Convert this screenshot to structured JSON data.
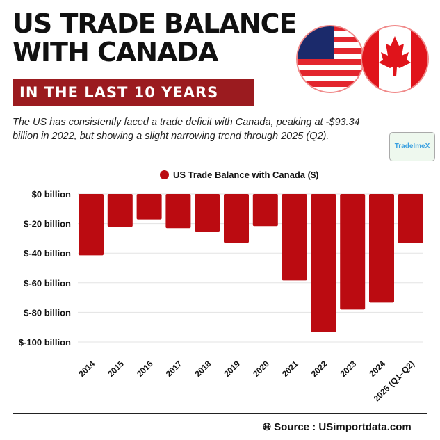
{
  "header": {
    "title_line1": "US TRADE BALANCE",
    "title_line2": "WITH CANADA",
    "subtitle": "IN THE LAST 10 YEARS",
    "description": "The US has consistently faced a trade deficit with Canada, peaking at -$93.34 billion in 2022, but showing a slight narrowing trend through 2025 (Q2).",
    "logo_text": "TradeImeX"
  },
  "footer": {
    "source": "Source : USimportdata.com",
    "icon": "globe-icon"
  },
  "colors": {
    "bar": "#bb0b11",
    "banner": "#9b1b1f"
  },
  "chart_data": {
    "type": "bar",
    "categories": [
      "2014",
      "2015",
      "2016",
      "2017",
      "2018",
      "2019",
      "2020",
      "2021",
      "2022",
      "2023",
      "2024",
      "2025 (Q1–Q2)"
    ],
    "series": [
      {
        "name": "US Trade Balance with Canada ($)",
        "values": [
          -41.5,
          -22.2,
          -17.2,
          -23.1,
          -25.8,
          -33.0,
          -21.7,
          -58.4,
          -93.34,
          -78.1,
          -73.4,
          -33.3
        ]
      }
    ],
    "yticks": [
      "$0 billion",
      "$-20 billion",
      "$-40 billion",
      "$-60 billion",
      "$-80 billion",
      "$-100 billion"
    ],
    "ylim": [
      -100,
      0
    ],
    "grid": true,
    "legend": "top"
  }
}
